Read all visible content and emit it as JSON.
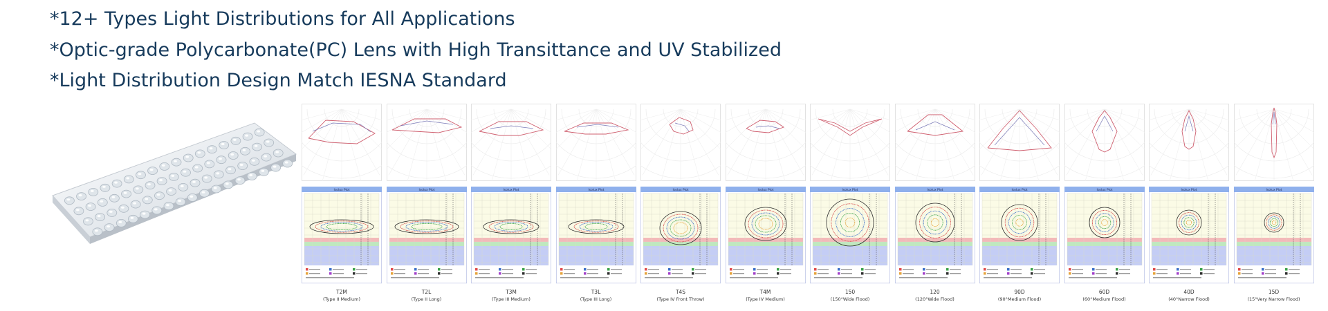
{
  "headlines": [
    "*12+ Types Light Distributions for All Applications",
    "*Optic-grade Polycarbonate(PC) Lens with High Transittance and UV Stabilized",
    "*Light Distribution Design Match IESNA Standard"
  ],
  "plot_title": "Isolux Plot",
  "distributions": [
    {
      "code": "T2M",
      "desc": "(Type II Medium)"
    },
    {
      "code": "T2L",
      "desc": "(Type II Long)"
    },
    {
      "code": "T3M",
      "desc": "(Type III Medium)"
    },
    {
      "code": "T3L",
      "desc": "(Type III Long)"
    },
    {
      "code": "T4S",
      "desc": "(Type IV Front Throw)"
    },
    {
      "code": "T4M",
      "desc": "(Type IV Medium)"
    },
    {
      "code": "150",
      "desc": "(150°Wide Flood)"
    },
    {
      "code": "120",
      "desc": "(120°Wide Flood)"
    },
    {
      "code": "90D",
      "desc": "(90°Medium Flood)"
    },
    {
      "code": "60D",
      "desc": "(60°Medium Flood)"
    },
    {
      "code": "40D",
      "desc": "(40°Narrow Flood)"
    },
    {
      "code": "15D",
      "desc": "(15°Very Narrow Flood)"
    }
  ],
  "colors": {
    "headline": "#173b5c",
    "plot_header": "#8fb0ec",
    "plot_bg": "#fbfbe6",
    "band_red": "#f3b9b9",
    "band_green": "#bfe8bf",
    "plot_bottom": "#c4cdf5",
    "polar_curve": "#cf5f6f"
  }
}
